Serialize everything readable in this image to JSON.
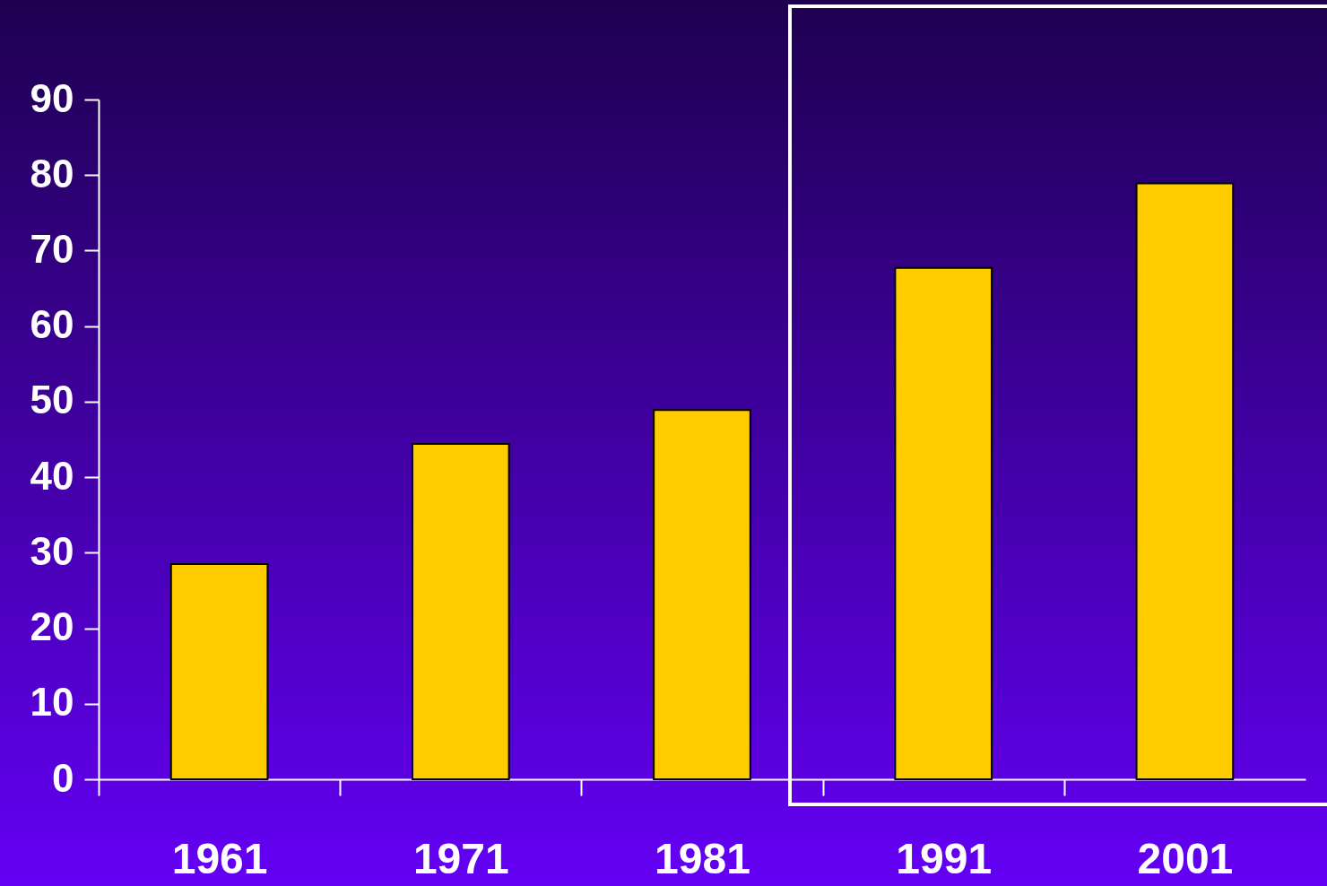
{
  "chart_data": {
    "type": "bar",
    "categories": [
      "1961",
      "1971",
      "1981",
      "1991",
      "2001"
    ],
    "values": [
      28.5,
      44.4,
      48.9,
      67.7,
      78.9
    ],
    "color": "#ffcc00",
    "ylim": [
      0,
      90
    ],
    "yticks": [
      0,
      10,
      20,
      30,
      40,
      50,
      60,
      70,
      80,
      90
    ],
    "grid": false
  }
}
